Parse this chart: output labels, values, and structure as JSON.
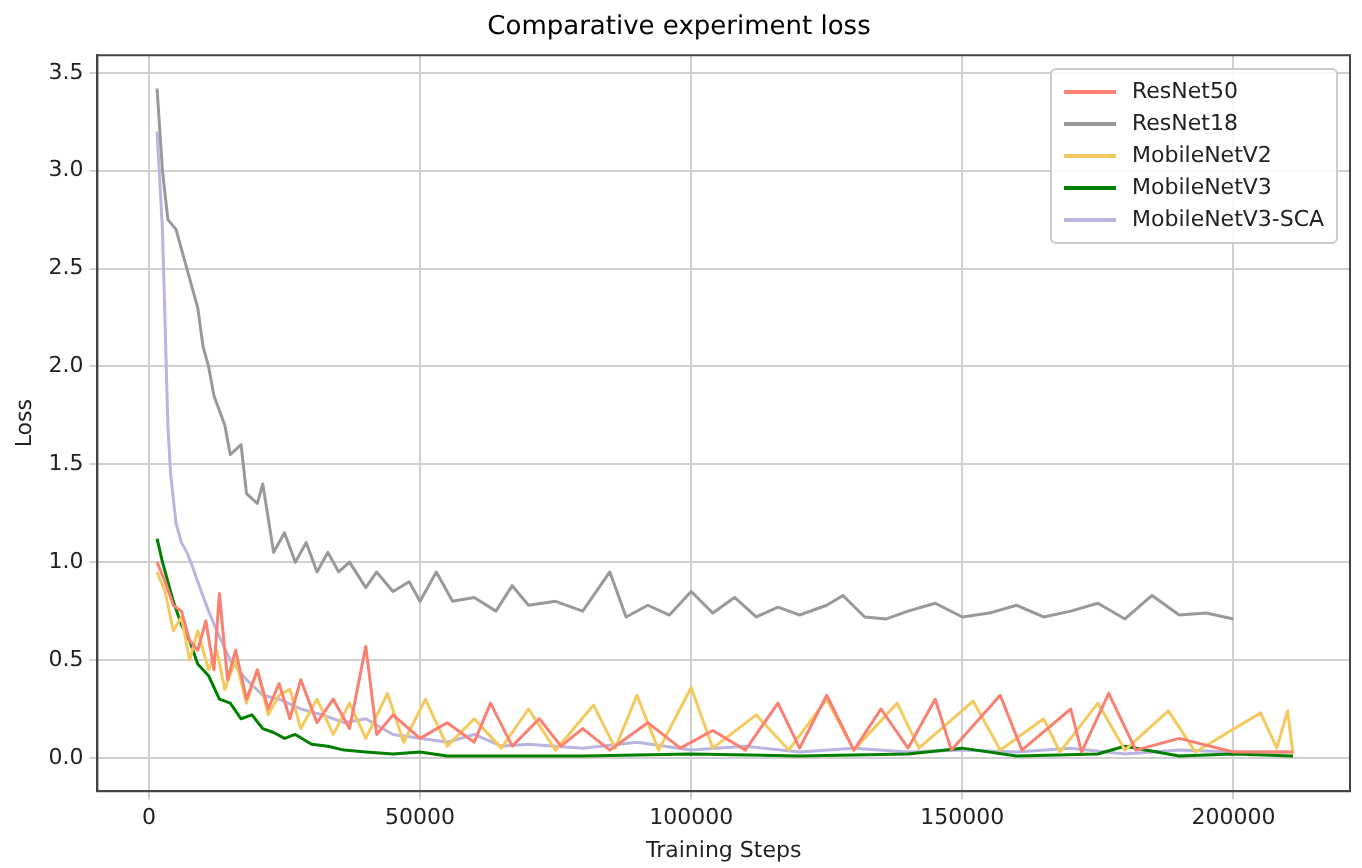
{
  "chart_data": {
    "type": "line",
    "title": "Comparative experiment loss",
    "xlabel": "Training Steps",
    "ylabel": "Loss",
    "xlim": [
      -9500,
      221500
    ],
    "ylim": [
      -0.17,
      3.59
    ],
    "xticks": [
      0,
      50000,
      100000,
      150000,
      200000
    ],
    "yticks": [
      {
        "value": 0,
        "label": "0.0"
      },
      {
        "value": 0.5,
        "label": "0.5"
      },
      {
        "value": 1,
        "label": "1.0"
      },
      {
        "value": 1.5,
        "label": "1.5"
      },
      {
        "value": 2,
        "label": "2.0"
      },
      {
        "value": 2.5,
        "label": "2.5"
      },
      {
        "value": 3,
        "label": "3.0"
      },
      {
        "value": 3.5,
        "label": "3.5"
      }
    ],
    "grid": true,
    "legend": "top right",
    "marker": "none",
    "line_style": "solid",
    "series": [
      {
        "name": "ResNet50",
        "color": "#fa8072",
        "x": [
          1500,
          3000,
          4500,
          6000,
          7500,
          9000,
          10500,
          12000,
          13000,
          14500,
          16000,
          18000,
          20000,
          22000,
          24000,
          26000,
          28000,
          31000,
          34000,
          37000,
          40000,
          42000,
          45000,
          50000,
          55000,
          60000,
          63000,
          67000,
          72000,
          76000,
          80000,
          85000,
          92000,
          98000,
          104000,
          110000,
          116000,
          120000,
          125000,
          130000,
          135000,
          140000,
          145000,
          148000,
          157000,
          161000,
          170000,
          172000,
          177000,
          182000,
          190000,
          200000,
          211000
        ],
        "values": [
          1.0,
          0.9,
          0.78,
          0.75,
          0.6,
          0.55,
          0.7,
          0.45,
          0.84,
          0.4,
          0.55,
          0.3,
          0.45,
          0.25,
          0.38,
          0.2,
          0.4,
          0.18,
          0.3,
          0.15,
          0.57,
          0.12,
          0.22,
          0.1,
          0.18,
          0.08,
          0.28,
          0.06,
          0.2,
          0.06,
          0.15,
          0.04,
          0.18,
          0.05,
          0.14,
          0.04,
          0.28,
          0.05,
          0.32,
          0.04,
          0.25,
          0.05,
          0.3,
          0.04,
          0.32,
          0.04,
          0.25,
          0.03,
          0.33,
          0.04,
          0.1,
          0.03,
          0.03
        ]
      },
      {
        "name": "ResNet18",
        "color": "#999999",
        "x": [
          1500,
          2500,
          3500,
          5000,
          6000,
          8000,
          9000,
          10000,
          11000,
          12000,
          14000,
          15000,
          17000,
          18000,
          20000,
          21000,
          23000,
          25000,
          27000,
          29000,
          31000,
          33000,
          35000,
          37000,
          40000,
          42000,
          45000,
          48000,
          50000,
          53000,
          56000,
          60000,
          64000,
          67000,
          70000,
          75000,
          80000,
          85000,
          88000,
          92000,
          96000,
          100000,
          104000,
          108000,
          112000,
          116000,
          120000,
          125000,
          128000,
          132000,
          136000,
          140000,
          145000,
          150000,
          155000,
          160000,
          165000,
          170000,
          175000,
          180000,
          185000,
          190000,
          195000,
          200000
        ],
        "values": [
          3.42,
          3.0,
          2.75,
          2.7,
          2.6,
          2.4,
          2.3,
          2.1,
          2.0,
          1.85,
          1.7,
          1.55,
          1.6,
          1.35,
          1.3,
          1.4,
          1.05,
          1.15,
          1.0,
          1.1,
          0.95,
          1.05,
          0.95,
          1.0,
          0.87,
          0.95,
          0.85,
          0.9,
          0.8,
          0.95,
          0.8,
          0.82,
          0.75,
          0.88,
          0.78,
          0.8,
          0.75,
          0.95,
          0.72,
          0.78,
          0.73,
          0.85,
          0.74,
          0.82,
          0.72,
          0.77,
          0.73,
          0.78,
          0.83,
          0.72,
          0.71,
          0.75,
          0.79,
          0.72,
          0.74,
          0.78,
          0.72,
          0.75,
          0.79,
          0.71,
          0.83,
          0.73,
          0.74,
          0.71
        ]
      },
      {
        "name": "MobileNetV2",
        "color": "#f4c95d",
        "x": [
          1500,
          3000,
          4500,
          6000,
          7500,
          9000,
          11000,
          12500,
          14000,
          16000,
          18000,
          20000,
          22000,
          24000,
          26000,
          28000,
          31000,
          34000,
          37000,
          40000,
          44000,
          47000,
          51000,
          55000,
          60000,
          65000,
          70000,
          75000,
          82000,
          86000,
          90000,
          94000,
          100000,
          104000,
          112000,
          118000,
          125000,
          130000,
          138000,
          142000,
          152000,
          157000,
          165000,
          168000,
          175000,
          180000,
          188000,
          193000,
          205000,
          208000,
          210000,
          211000
        ],
        "values": [
          0.95,
          0.85,
          0.65,
          0.72,
          0.5,
          0.65,
          0.45,
          0.55,
          0.35,
          0.5,
          0.28,
          0.45,
          0.22,
          0.32,
          0.35,
          0.15,
          0.3,
          0.12,
          0.28,
          0.1,
          0.33,
          0.08,
          0.3,
          0.06,
          0.2,
          0.05,
          0.25,
          0.04,
          0.27,
          0.05,
          0.32,
          0.04,
          0.36,
          0.05,
          0.22,
          0.04,
          0.3,
          0.04,
          0.28,
          0.05,
          0.29,
          0.04,
          0.2,
          0.03,
          0.28,
          0.04,
          0.24,
          0.03,
          0.23,
          0.05,
          0.24,
          0.02
        ]
      },
      {
        "name": "MobileNetV3",
        "color": "#008000",
        "x": [
          1500,
          2500,
          3500,
          4500,
          6000,
          7500,
          9000,
          11000,
          13000,
          15000,
          17000,
          19000,
          21000,
          23000,
          25000,
          27000,
          30000,
          33000,
          36000,
          40000,
          45000,
          50000,
          55000,
          60000,
          80000,
          100000,
          120000,
          140000,
          150000,
          160000,
          175000,
          180000,
          190000,
          200000,
          211000
        ],
        "values": [
          1.12,
          1.0,
          0.9,
          0.8,
          0.68,
          0.6,
          0.48,
          0.42,
          0.3,
          0.28,
          0.2,
          0.22,
          0.15,
          0.13,
          0.1,
          0.12,
          0.07,
          0.06,
          0.04,
          0.03,
          0.02,
          0.03,
          0.01,
          0.01,
          0.01,
          0.02,
          0.01,
          0.02,
          0.05,
          0.01,
          0.02,
          0.06,
          0.01,
          0.02,
          0.01
        ]
      },
      {
        "name": "MobileNetV3-SCA",
        "color": "#b9b4e0",
        "x": [
          1500,
          2500,
          3000,
          3500,
          4000,
          5000,
          6000,
          7000,
          8000,
          9000,
          11000,
          13000,
          15000,
          18000,
          21000,
          24000,
          28000,
          32000,
          36000,
          40000,
          45000,
          50000,
          55000,
          60000,
          65000,
          70000,
          80000,
          90000,
          100000,
          110000,
          120000,
          130000,
          140000,
          150000,
          160000,
          170000,
          180000,
          190000,
          200000,
          210000
        ],
        "values": [
          3.2,
          2.7,
          2.2,
          1.7,
          1.45,
          1.2,
          1.1,
          1.05,
          0.98,
          0.9,
          0.75,
          0.62,
          0.5,
          0.4,
          0.32,
          0.3,
          0.25,
          0.22,
          0.18,
          0.2,
          0.12,
          0.1,
          0.08,
          0.12,
          0.06,
          0.07,
          0.05,
          0.08,
          0.04,
          0.06,
          0.03,
          0.05,
          0.03,
          0.04,
          0.03,
          0.05,
          0.02,
          0.04,
          0.03,
          0.03
        ]
      }
    ]
  }
}
